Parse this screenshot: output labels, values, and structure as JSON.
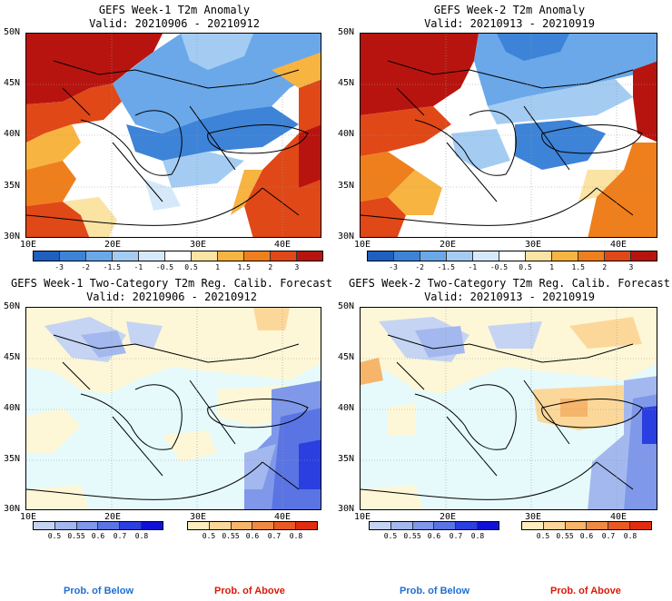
{
  "panels": [
    {
      "line1": "GEFS Week-1 T2m Anomaly",
      "line2": "Valid: 20210906 - 20210912"
    },
    {
      "line1": "GEFS Week-2 T2m Anomaly",
      "line2": "Valid: 20210913 - 20210919"
    },
    {
      "line1": "GEFS Week-1 Two-Category T2m Reg. Calib. Forecast",
      "line2": "Valid: 20210906 - 20210912"
    },
    {
      "line1": "GEFS Week-2 Two-Category T2m Reg. Calib. Forecast",
      "line2": "Valid: 20210913 - 20210919"
    }
  ],
  "axes": {
    "lat_labels": [
      "50N",
      "45N",
      "40N",
      "35N",
      "30N"
    ],
    "lon_labels": [
      "10E",
      "20E",
      "30E",
      "40E"
    ]
  },
  "anomaly_colorbar": {
    "labels": [
      "-3",
      "-2",
      "-1.5",
      "-1",
      "-0.5",
      "0.5",
      "1",
      "1.5",
      "2",
      "3"
    ],
    "colors": [
      "#1f5fbf",
      "#3d83d8",
      "#6aa8ea",
      "#a4ccf2",
      "#d6e9fa",
      "#ffffff",
      "#fbe3a4",
      "#f7b441",
      "#ef7f1c",
      "#e04818",
      "#b8140f"
    ]
  },
  "below_colorbar": {
    "labels": [
      "0.5",
      "0.55",
      "0.6",
      "0.7",
      "0.8"
    ],
    "colors": [
      "#c6d4f3",
      "#a3b8ee",
      "#7f98ea",
      "#5a74e4",
      "#2b3ee0",
      "#1010d8"
    ]
  },
  "above_colorbar": {
    "labels": [
      "0.5",
      "0.55",
      "0.6",
      "0.7",
      "0.8"
    ],
    "colors": [
      "#fcedbf",
      "#fbd89a",
      "#f6b56a",
      "#f08a42",
      "#e85a22",
      "#e02c10"
    ]
  },
  "legend": {
    "below_text": "Prob. of Below",
    "above_text": "Prob. of Above",
    "below_color": "#1f6fd0",
    "above_color": "#d81a0a"
  },
  "map_colors": {
    "ocean_prob": "#e6fafb",
    "land_prob_neutral": "#fdf7d8"
  }
}
